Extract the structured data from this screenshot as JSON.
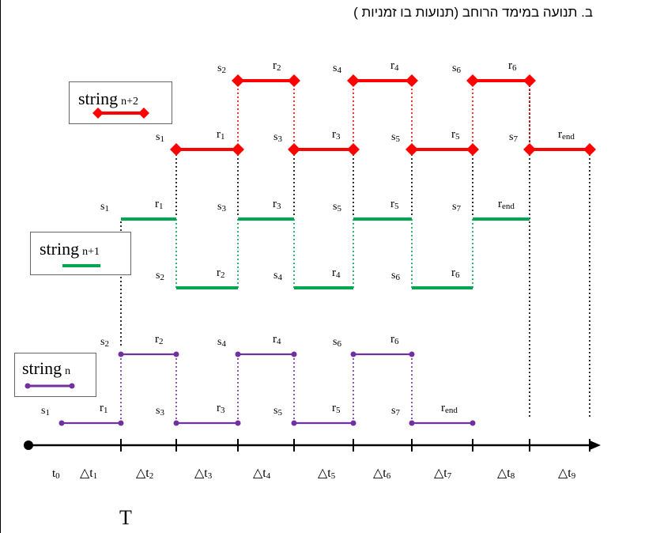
{
  "title": "ב. תנועה במימד הרוחב (תנועות בו זמניות )",
  "period_label": "T",
  "colors": {
    "string_n": "#7030a0",
    "string_n1": "#00a650",
    "string_n2": "#ff0000",
    "axis": "#000000",
    "guide": "#000000"
  },
  "legend": {
    "n": {
      "word": "string",
      "sub": "n"
    },
    "n1": {
      "word": "string",
      "sub": "n+1"
    },
    "n2": {
      "word": "string",
      "sub": "n+2"
    }
  },
  "time_axis": {
    "t0": {
      "sym": "t",
      "sub": "0"
    },
    "intervals": [
      {
        "sym": "△t",
        "sub": "1"
      },
      {
        "sym": "△t",
        "sub": "2"
      },
      {
        "sym": "△t",
        "sub": "3"
      },
      {
        "sym": "△t",
        "sub": "4"
      },
      {
        "sym": "△t",
        "sub": "5"
      },
      {
        "sym": "△t",
        "sub": "6"
      },
      {
        "sym": "△t",
        "sub": "7"
      },
      {
        "sym": "△t",
        "sub": "8"
      },
      {
        "sym": "△t",
        "sub": "9"
      }
    ]
  },
  "strings": [
    {
      "key": "n",
      "segments": [
        {
          "level": "low",
          "start": 0,
          "end": 1,
          "s": {
            "sym": "s",
            "sub": "1"
          },
          "r": {
            "sym": "r",
            "sub": "1"
          }
        },
        {
          "level": "high",
          "start": 1,
          "end": 2,
          "s": {
            "sym": "s",
            "sub": "2"
          },
          "r": {
            "sym": "r",
            "sub": "2"
          }
        },
        {
          "level": "low",
          "start": 2,
          "end": 3,
          "s": {
            "sym": "s",
            "sub": "3"
          },
          "r": {
            "sym": "r",
            "sub": "3"
          }
        },
        {
          "level": "high",
          "start": 3,
          "end": 4,
          "s": {
            "sym": "s",
            "sub": "4"
          },
          "r": {
            "sym": "r",
            "sub": "4"
          }
        },
        {
          "level": "low",
          "start": 4,
          "end": 5,
          "s": {
            "sym": "s",
            "sub": "5"
          },
          "r": {
            "sym": "r",
            "sub": "5"
          }
        },
        {
          "level": "high",
          "start": 5,
          "end": 6,
          "s": {
            "sym": "s",
            "sub": "6"
          },
          "r": {
            "sym": "r",
            "sub": "6"
          }
        },
        {
          "level": "low",
          "start": 6,
          "end": 7,
          "s": {
            "sym": "s",
            "sub": "7"
          },
          "r": {
            "sym": "r",
            "sub": "end"
          }
        }
      ]
    },
    {
      "key": "n1",
      "segments": [
        {
          "level": "high",
          "start": 1,
          "end": 2,
          "s": {
            "sym": "s",
            "sub": "1"
          },
          "r": {
            "sym": "r",
            "sub": "1"
          }
        },
        {
          "level": "low",
          "start": 2,
          "end": 3,
          "s": {
            "sym": "s",
            "sub": "2"
          },
          "r": {
            "sym": "r",
            "sub": "2"
          }
        },
        {
          "level": "high",
          "start": 3,
          "end": 4,
          "s": {
            "sym": "s",
            "sub": "3"
          },
          "r": {
            "sym": "r",
            "sub": "3"
          }
        },
        {
          "level": "low",
          "start": 4,
          "end": 5,
          "s": {
            "sym": "s",
            "sub": "4"
          },
          "r": {
            "sym": "r",
            "sub": "4"
          }
        },
        {
          "level": "high",
          "start": 5,
          "end": 6,
          "s": {
            "sym": "s",
            "sub": "5"
          },
          "r": {
            "sym": "r",
            "sub": "5"
          }
        },
        {
          "level": "low",
          "start": 6,
          "end": 7,
          "s": {
            "sym": "s",
            "sub": "6"
          },
          "r": {
            "sym": "r",
            "sub": "6"
          }
        },
        {
          "level": "high",
          "start": 7,
          "end": 8,
          "s": {
            "sym": "s",
            "sub": "7"
          },
          "r": {
            "sym": "r",
            "sub": "end"
          }
        }
      ]
    },
    {
      "key": "n2",
      "segments": [
        {
          "level": "low",
          "start": 2,
          "end": 3,
          "s": {
            "sym": "s",
            "sub": "1"
          },
          "r": {
            "sym": "r",
            "sub": "1"
          }
        },
        {
          "level": "high",
          "start": 3,
          "end": 4,
          "s": {
            "sym": "s",
            "sub": "2"
          },
          "r": {
            "sym": "r",
            "sub": "2"
          }
        },
        {
          "level": "low",
          "start": 4,
          "end": 5,
          "s": {
            "sym": "s",
            "sub": "3"
          },
          "r": {
            "sym": "r",
            "sub": "3"
          }
        },
        {
          "level": "high",
          "start": 5,
          "end": 6,
          "s": {
            "sym": "s",
            "sub": "4"
          },
          "r": {
            "sym": "r",
            "sub": "4"
          }
        },
        {
          "level": "low",
          "start": 6,
          "end": 7,
          "s": {
            "sym": "s",
            "sub": "5"
          },
          "r": {
            "sym": "r",
            "sub": "5"
          }
        },
        {
          "level": "high",
          "start": 7,
          "end": 8,
          "s": {
            "sym": "s",
            "sub": "6"
          },
          "r": {
            "sym": "r",
            "sub": "6"
          }
        },
        {
          "level": "low",
          "start": 8,
          "end": 9,
          "s": {
            "sym": "s",
            "sub": "7"
          },
          "r": {
            "sym": "r",
            "sub": "end"
          }
        }
      ]
    }
  ]
}
